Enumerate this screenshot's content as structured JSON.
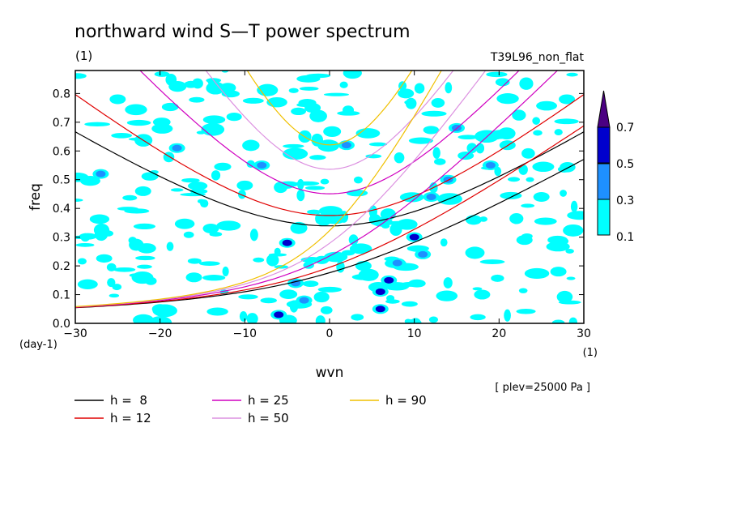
{
  "chart_data": {
    "type": "heatmap",
    "title": "northward wind S—T power spectrum",
    "unit_label": "(1)",
    "run_label": "T39L96_non_flat",
    "xlabel": "wvn",
    "ylabel": "freq",
    "x_unit_label": "(1)",
    "y_unit_label": "(day-1)",
    "pressure_note": "[ plev=25000 Pa ]",
    "xlim": [
      -30,
      30
    ],
    "ylim": [
      0,
      0.88
    ],
    "x_ticks": [
      "−30",
      "−20",
      "−10",
      "0",
      "10",
      "20",
      "30"
    ],
    "y_ticks": [
      "0.0",
      "0.1",
      "0.2",
      "0.3",
      "0.4",
      "0.5",
      "0.6",
      "0.7",
      "0.8"
    ],
    "x_tick_values": [
      -30,
      -20,
      -10,
      0,
      10,
      20,
      30
    ],
    "y_tick_values": [
      0,
      0.1,
      0.2,
      0.3,
      0.4,
      0.5,
      0.6,
      0.7,
      0.8
    ],
    "colorbar": {
      "levels": [
        "0.1",
        "0.3",
        "0.5",
        "0.7"
      ],
      "level_values": [
        0.1,
        0.3,
        0.5,
        0.7
      ],
      "colors": [
        "#00ffff",
        "#1e90ff",
        "#0000cd",
        "#4b0082"
      ]
    },
    "contour_blobs": [
      {
        "x": -27,
        "y": 0.52,
        "v": 0.3
      },
      {
        "x": -22,
        "y": 0.46,
        "v": 0.1
      },
      {
        "x": -18,
        "y": 0.61,
        "v": 0.3
      },
      {
        "x": -14,
        "y": 0.33,
        "v": 0.1
      },
      {
        "x": -10,
        "y": 0.48,
        "v": 0.1
      },
      {
        "x": -8,
        "y": 0.55,
        "v": 0.3
      },
      {
        "x": -5,
        "y": 0.28,
        "v": 0.5
      },
      {
        "x": -4,
        "y": 0.14,
        "v": 0.3
      },
      {
        "x": -6,
        "y": 0.03,
        "v": 0.5
      },
      {
        "x": -3,
        "y": 0.08,
        "v": 0.3
      },
      {
        "x": 0,
        "y": 0.38,
        "v": 0.1
      },
      {
        "x": 2,
        "y": 0.62,
        "v": 0.3
      },
      {
        "x": 4,
        "y": 0.2,
        "v": 0.1
      },
      {
        "x": 6,
        "y": 0.05,
        "v": 0.5
      },
      {
        "x": 6,
        "y": 0.11,
        "v": 0.5
      },
      {
        "x": 7,
        "y": 0.15,
        "v": 0.5
      },
      {
        "x": 8,
        "y": 0.21,
        "v": 0.3
      },
      {
        "x": 10,
        "y": 0.3,
        "v": 0.5
      },
      {
        "x": 11,
        "y": 0.24,
        "v": 0.3
      },
      {
        "x": 12,
        "y": 0.44,
        "v": 0.3
      },
      {
        "x": 14,
        "y": 0.5,
        "v": 0.3
      },
      {
        "x": 15,
        "y": 0.68,
        "v": 0.3
      },
      {
        "x": 17,
        "y": 0.36,
        "v": 0.1
      },
      {
        "x": 19,
        "y": 0.55,
        "v": 0.3
      },
      {
        "x": 21,
        "y": 0.62,
        "v": 0.1
      },
      {
        "x": 23,
        "y": 0.29,
        "v": 0.1
      },
      {
        "x": 25,
        "y": 0.44,
        "v": 0.1
      },
      {
        "x": 28,
        "y": 0.78,
        "v": 0.1
      },
      {
        "x": -25,
        "y": 0.78,
        "v": 0.1
      },
      {
        "x": -16,
        "y": 0.16,
        "v": 0.1
      },
      {
        "x": -20,
        "y": 0.05,
        "v": 0.1
      },
      {
        "x": 18,
        "y": 0.1,
        "v": 0.1
      },
      {
        "x": 27,
        "y": 0.18,
        "v": 0.1
      },
      {
        "x": -2,
        "y": 0.75,
        "v": 0.1
      },
      {
        "x": 9,
        "y": 0.8,
        "v": 0.1
      },
      {
        "x": -12,
        "y": 0.82,
        "v": 0.1
      }
    ],
    "series": [
      {
        "name": "h =  8",
        "h": 8,
        "color": "#000000"
      },
      {
        "name": "h = 12",
        "h": 12,
        "color": "#e00000"
      },
      {
        "name": "h = 25",
        "h": 25,
        "color": "#d000c0"
      },
      {
        "name": "h = 50",
        "h": 50,
        "color": "#dc90e0"
      },
      {
        "name": "h = 90",
        "h": 90,
        "color": "#f0c000"
      }
    ]
  }
}
